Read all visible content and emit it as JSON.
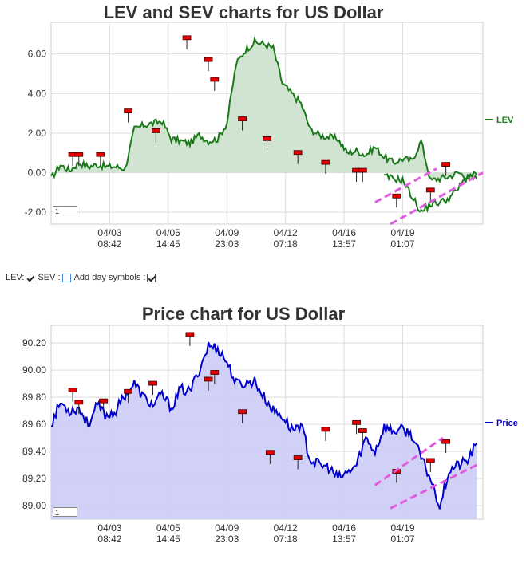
{
  "chart_data": [
    {
      "type": "area",
      "title": "LEV and SEV charts for US Dollar",
      "series": [
        {
          "name": "LEV",
          "color": "#1a7a1a",
          "fill": "#cfe3cf"
        }
      ],
      "x_tick_labels": [
        [
          "04/03",
          "08:42"
        ],
        [
          "04/05",
          "14:45"
        ],
        [
          "04/09",
          "23:03"
        ],
        [
          "04/12",
          "07:18"
        ],
        [
          "04/16",
          "13:57"
        ],
        [
          "04/19",
          "01:07"
        ]
      ],
      "y_ticks": [
        6.0,
        4.0,
        2.0,
        0.0,
        -2.0
      ],
      "y_tick_labels": [
        "6.00",
        "4.00",
        "2.00",
        "0.00",
        "-2.00"
      ],
      "ylim": [
        -2.6,
        7.6
      ],
      "grid": true,
      "legend": "right",
      "x": [
        0,
        3,
        6,
        9,
        12,
        15,
        18,
        21,
        24,
        27,
        30,
        33,
        36,
        39,
        42,
        45,
        48,
        51,
        54,
        57,
        60,
        63,
        66,
        69,
        72,
        75,
        78,
        81,
        84,
        87,
        90,
        93,
        96,
        99,
        102,
        105,
        108,
        111,
        114,
        117,
        120,
        123,
        126,
        129,
        132,
        135,
        138
      ],
      "values": [
        -0.3,
        0.4,
        0.1,
        0.5,
        0.3,
        0.4,
        0.3,
        0.3,
        0.2,
        2.2,
        2.4,
        2.5,
        2.6,
        1.7,
        1.6,
        1.5,
        1.9,
        1.6,
        1.7,
        2.5,
        5.5,
        6.2,
        6.6,
        6.5,
        6.3,
        4.5,
        4.0,
        3.5,
        2.2,
        1.9,
        1.8,
        1.7,
        1.0,
        1.1,
        0.9,
        1.3,
        0.8,
        0.5,
        0.7,
        0.6,
        1.6,
        -0.4,
        -0.3,
        -0.2,
        0.0,
        -0.2,
        -0.3
      ],
      "x2": [
        108,
        111,
        114,
        117,
        120,
        123,
        126,
        129,
        132,
        135,
        138
      ],
      "values2": [
        -0.2,
        -0.3,
        -0.4,
        -1.2,
        -2.0,
        -1.6,
        -1.5,
        -1.3,
        -0.8,
        -0.2,
        -0.1
      ],
      "symbols": [
        {
          "x": 7,
          "y": 0.9
        },
        {
          "x": 9,
          "y": 0.9
        },
        {
          "x": 16,
          "y": 0.9
        },
        {
          "x": 25,
          "y": 3.1
        },
        {
          "x": 34,
          "y": 2.1
        },
        {
          "x": 44,
          "y": 6.8
        },
        {
          "x": 51,
          "y": 5.7
        },
        {
          "x": 53,
          "y": 4.7
        },
        {
          "x": 62,
          "y": 2.7
        },
        {
          "x": 70,
          "y": 1.7
        },
        {
          "x": 80,
          "y": 1.0
        },
        {
          "x": 89,
          "y": 0.5
        },
        {
          "x": 99,
          "y": 0.1
        },
        {
          "x": 101,
          "y": 0.1
        },
        {
          "x": 112,
          "y": -1.2
        },
        {
          "x": 123,
          "y": -0.9
        },
        {
          "x": 128,
          "y": 0.4
        }
      ],
      "trend_lines": [
        {
          "x1": 105,
          "y1": -1.5,
          "x2": 125,
          "y2": 0.2
        },
        {
          "x1": 110,
          "y1": -2.6,
          "x2": 140,
          "y2": 0.0
        }
      ],
      "trend_color": "#e05ce0",
      "zoom_value": "1"
    },
    {
      "type": "area",
      "title": "Price chart for US Dollar",
      "series": [
        {
          "name": "Price",
          "color": "#0000cc",
          "fill": "#cfcff7"
        }
      ],
      "x_tick_labels": [
        [
          "04/03",
          "08:42"
        ],
        [
          "04/05",
          "14:45"
        ],
        [
          "04/09",
          "23:03"
        ],
        [
          "04/12",
          "07:18"
        ],
        [
          "04/16",
          "13:57"
        ],
        [
          "04/19",
          "01:07"
        ]
      ],
      "y_ticks": [
        90.2,
        90.0,
        89.8,
        89.6,
        89.4,
        89.2,
        89.0
      ],
      "y_tick_labels": [
        "90.20",
        "90.00",
        "89.80",
        "89.60",
        "89.40",
        "89.20",
        "89.00"
      ],
      "ylim": [
        88.9,
        90.33
      ],
      "grid": true,
      "legend": "right",
      "x": [
        0,
        3,
        6,
        9,
        12,
        15,
        18,
        21,
        24,
        27,
        30,
        33,
        36,
        39,
        42,
        45,
        48,
        51,
        54,
        57,
        60,
        63,
        66,
        69,
        72,
        75,
        78,
        81,
        84,
        87,
        90,
        93,
        96,
        99,
        102,
        105,
        108,
        111,
        114,
        117,
        120,
        123,
        126,
        129,
        132,
        135,
        138
      ],
      "values": [
        89.6,
        89.76,
        89.7,
        89.72,
        89.6,
        89.74,
        89.66,
        89.7,
        89.82,
        89.9,
        89.8,
        89.74,
        89.82,
        89.72,
        89.86,
        89.84,
        90.0,
        90.18,
        90.16,
        90.06,
        89.9,
        89.9,
        89.92,
        89.8,
        89.7,
        89.66,
        89.56,
        89.6,
        89.34,
        89.3,
        89.28,
        89.2,
        89.24,
        89.3,
        89.5,
        89.4,
        89.58,
        89.55,
        89.56,
        89.52,
        89.35,
        89.2,
        89.0,
        89.26,
        89.3,
        89.33,
        89.46
      ],
      "symbols": [
        {
          "x": 7,
          "y": 89.85
        },
        {
          "x": 9,
          "y": 89.76
        },
        {
          "x": 17,
          "y": 89.77
        },
        {
          "x": 25,
          "y": 89.84
        },
        {
          "x": 33,
          "y": 89.9
        },
        {
          "x": 45,
          "y": 90.26
        },
        {
          "x": 51,
          "y": 89.93
        },
        {
          "x": 53,
          "y": 89.98
        },
        {
          "x": 62,
          "y": 89.69
        },
        {
          "x": 71,
          "y": 89.39
        },
        {
          "x": 80,
          "y": 89.35
        },
        {
          "x": 89,
          "y": 89.56
        },
        {
          "x": 99,
          "y": 89.61
        },
        {
          "x": 101,
          "y": 89.55
        },
        {
          "x": 112,
          "y": 89.25
        },
        {
          "x": 123,
          "y": 89.33
        },
        {
          "x": 128,
          "y": 89.47
        }
      ],
      "trend_lines": [
        {
          "x1": 105,
          "y1": 89.15,
          "x2": 127,
          "y2": 89.5
        },
        {
          "x1": 110,
          "y1": 88.98,
          "x2": 138,
          "y2": 89.3
        }
      ],
      "trend_color": "#e05ce0",
      "zoom_value": "1"
    }
  ],
  "controls": {
    "lev_label": "LEV:",
    "sev_label": "SEV :",
    "day_symbols_label": "Add day symbols :"
  }
}
